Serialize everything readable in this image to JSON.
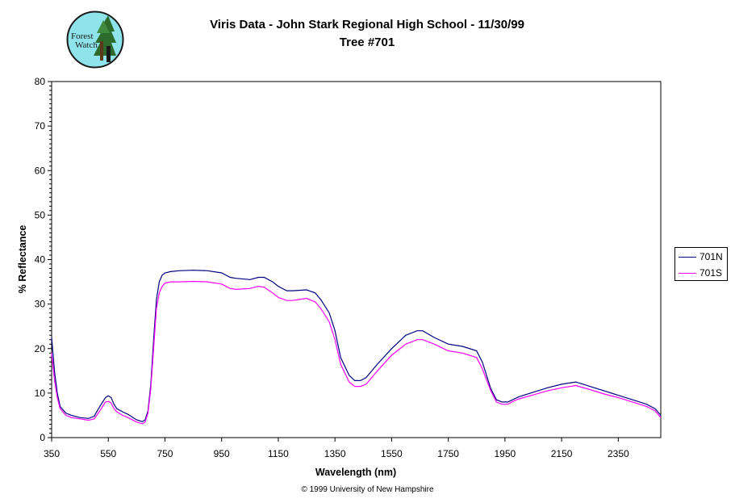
{
  "logo": {
    "text_line1": "Forest",
    "text_line2": "Watch"
  },
  "copyright": "© 1999 University of New Hampshire",
  "chart_data": {
    "type": "line",
    "title": "Viris Data - John Stark Regional High School - 11/30/99",
    "subtitle": "Tree #701",
    "xlabel": "Wavelength (nm)",
    "ylabel": "% Reflectance",
    "xlim": [
      350,
      2500
    ],
    "ylim": [
      0,
      80
    ],
    "xticks": [
      350,
      550,
      750,
      950,
      1150,
      1350,
      1550,
      1750,
      1950,
      2150,
      2350
    ],
    "yticks": [
      0,
      10,
      20,
      30,
      40,
      50,
      60,
      70,
      80
    ],
    "grid": false,
    "legend_position": "right",
    "series": [
      {
        "name": "701N",
        "color": "#000080",
        "x": [
          350,
          360,
          370,
          380,
          400,
          420,
          450,
          480,
          500,
          520,
          540,
          550,
          560,
          570,
          580,
          600,
          620,
          650,
          670,
          680,
          690,
          700,
          710,
          720,
          730,
          740,
          750,
          770,
          800,
          850,
          900,
          950,
          980,
          1000,
          1050,
          1080,
          1100,
          1130,
          1150,
          1180,
          1200,
          1250,
          1280,
          1300,
          1330,
          1350,
          1370,
          1400,
          1420,
          1440,
          1460,
          1500,
          1550,
          1600,
          1640,
          1660,
          1700,
          1750,
          1800,
          1850,
          1870,
          1900,
          1920,
          1940,
          1960,
          1980,
          2000,
          2050,
          2100,
          2150,
          2200,
          2250,
          2300,
          2350,
          2400,
          2450,
          2480,
          2500
        ],
        "values": [
          22.5,
          15,
          10,
          7,
          5.5,
          5,
          4.5,
          4.3,
          4.8,
          7,
          9,
          9.4,
          9,
          7.5,
          6.5,
          5.8,
          5.2,
          4,
          3.6,
          4,
          6,
          12,
          22,
          31,
          35,
          36.5,
          37,
          37.3,
          37.5,
          37.6,
          37.5,
          37,
          36,
          35.8,
          35.5,
          36,
          36,
          35,
          34,
          33,
          33,
          33.2,
          32.5,
          31,
          28,
          24,
          18,
          14,
          12.8,
          12.8,
          13.5,
          16.5,
          20,
          23,
          24,
          24,
          22.5,
          21,
          20.5,
          19.5,
          17,
          11,
          8.5,
          8,
          8,
          8.6,
          9.2,
          10.2,
          11.2,
          12,
          12.5,
          11.5,
          10.5,
          9.5,
          8.5,
          7.5,
          6.5,
          5
        ]
      },
      {
        "name": "701S",
        "color": "#ff00ff",
        "x": [
          350,
          360,
          370,
          380,
          400,
          420,
          450,
          480,
          500,
          520,
          540,
          550,
          560,
          570,
          580,
          600,
          620,
          650,
          670,
          680,
          690,
          700,
          710,
          720,
          730,
          740,
          750,
          770,
          800,
          850,
          900,
          950,
          980,
          1000,
          1050,
          1080,
          1100,
          1130,
          1150,
          1180,
          1200,
          1250,
          1280,
          1300,
          1330,
          1350,
          1370,
          1400,
          1420,
          1440,
          1460,
          1500,
          1550,
          1600,
          1640,
          1660,
          1700,
          1750,
          1800,
          1850,
          1870,
          1900,
          1920,
          1940,
          1960,
          1980,
          2000,
          2050,
          2100,
          2150,
          2200,
          2250,
          2300,
          2350,
          2400,
          2450,
          2480,
          2500
        ],
        "values": [
          19,
          13,
          9,
          6.5,
          5,
          4.5,
          4.2,
          3.9,
          4.2,
          6,
          8,
          8.1,
          7.8,
          6.5,
          5.8,
          5,
          4.5,
          3.5,
          3.1,
          3.5,
          5.5,
          11,
          20,
          29,
          32.5,
          34,
          34.7,
          35,
          35,
          35.1,
          35,
          34.5,
          33.5,
          33.3,
          33.5,
          34,
          33.8,
          32.5,
          31.5,
          30.8,
          30.8,
          31.3,
          30.5,
          29,
          26,
          22,
          16.5,
          12.5,
          11.5,
          11.5,
          12,
          15,
          18.5,
          21,
          22,
          22,
          21,
          19.5,
          19,
          18,
          15.5,
          10.5,
          8,
          7.5,
          7.5,
          8.2,
          8.7,
          9.6,
          10.5,
          11.2,
          11.7,
          10.8,
          9.8,
          9,
          8,
          7,
          6,
          4.5
        ]
      }
    ]
  }
}
